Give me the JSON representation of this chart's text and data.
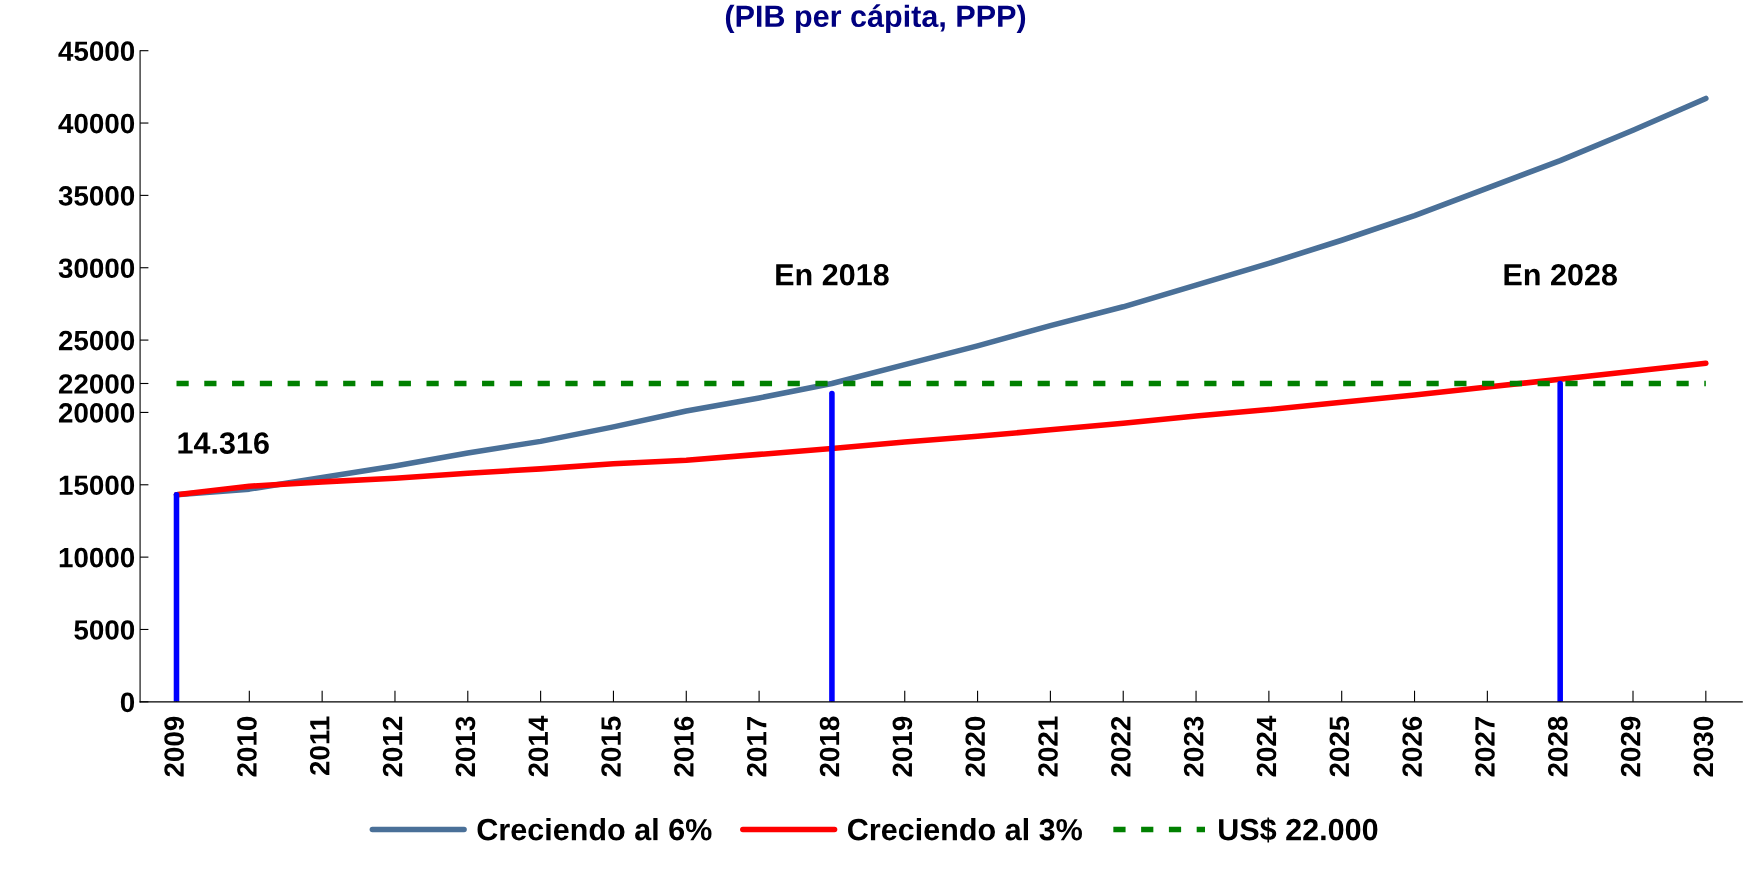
{
  "chart_data": {
    "type": "line",
    "title": "(PIB per cápita, PPP)",
    "x": [
      2009,
      2010,
      2011,
      2012,
      2013,
      2014,
      2015,
      2016,
      2017,
      2018,
      2019,
      2020,
      2021,
      2022,
      2023,
      2024,
      2025,
      2026,
      2027,
      2028,
      2029,
      2030
    ],
    "xlim": [
      2008.5,
      2030.5
    ],
    "xticks": [
      2009,
      2010,
      2011,
      2012,
      2013,
      2014,
      2015,
      2016,
      2017,
      2018,
      2019,
      2020,
      2021,
      2022,
      2023,
      2024,
      2025,
      2026,
      2027,
      2028,
      2029,
      2030
    ],
    "ylim": [
      0,
      45000
    ],
    "yticks": [
      0,
      5000,
      10000,
      15000,
      20000,
      22000,
      25000,
      30000,
      35000,
      40000,
      45000
    ],
    "series": [
      {
        "name": "Creciendo al 6%",
        "color": "#4a7098",
        "values": [
          14316,
          14700,
          15500,
          16300,
          17200,
          18000,
          19000,
          20100,
          21000,
          22000,
          23300,
          24600,
          26000,
          27300,
          28800,
          30300,
          31900,
          33600,
          35500,
          37400,
          39500,
          41700
        ]
      },
      {
        "name": "Creciendo al 3%",
        "color": "#ff0000",
        "values": [
          14316,
          14900,
          15200,
          15450,
          15800,
          16100,
          16450,
          16700,
          17100,
          17500,
          17950,
          18350,
          18800,
          19250,
          19750,
          20200,
          20700,
          21200,
          21750,
          22300,
          22850,
          23400
        ]
      },
      {
        "name": "US$ 22.000",
        "color": "#008000",
        "line_style": "dashed",
        "values": [
          22000,
          22000,
          22000,
          22000,
          22000,
          22000,
          22000,
          22000,
          22000,
          22000,
          22000,
          22000,
          22000,
          22000,
          22000,
          22000,
          22000,
          22000,
          22000,
          22000,
          22000,
          22000
        ]
      },
      {
        "color": "#0000ff",
        "x": [
          2009,
          2009
        ],
        "values": [
          0,
          14316
        ]
      },
      {
        "color": "#0000ff",
        "x": [
          2018,
          2018
        ],
        "values": [
          0,
          21300
        ]
      },
      {
        "color": "#0000ff",
        "x": [
          2028,
          2028
        ],
        "values": [
          0,
          22000
        ]
      }
    ],
    "annotations": [
      {
        "text": "14.316",
        "x": 2009,
        "y": 14316
      },
      "En 2018",
      "En 2028"
    ],
    "legend": "bottom",
    "grid": false,
    "marker": "none",
    "line_style": "solid"
  }
}
